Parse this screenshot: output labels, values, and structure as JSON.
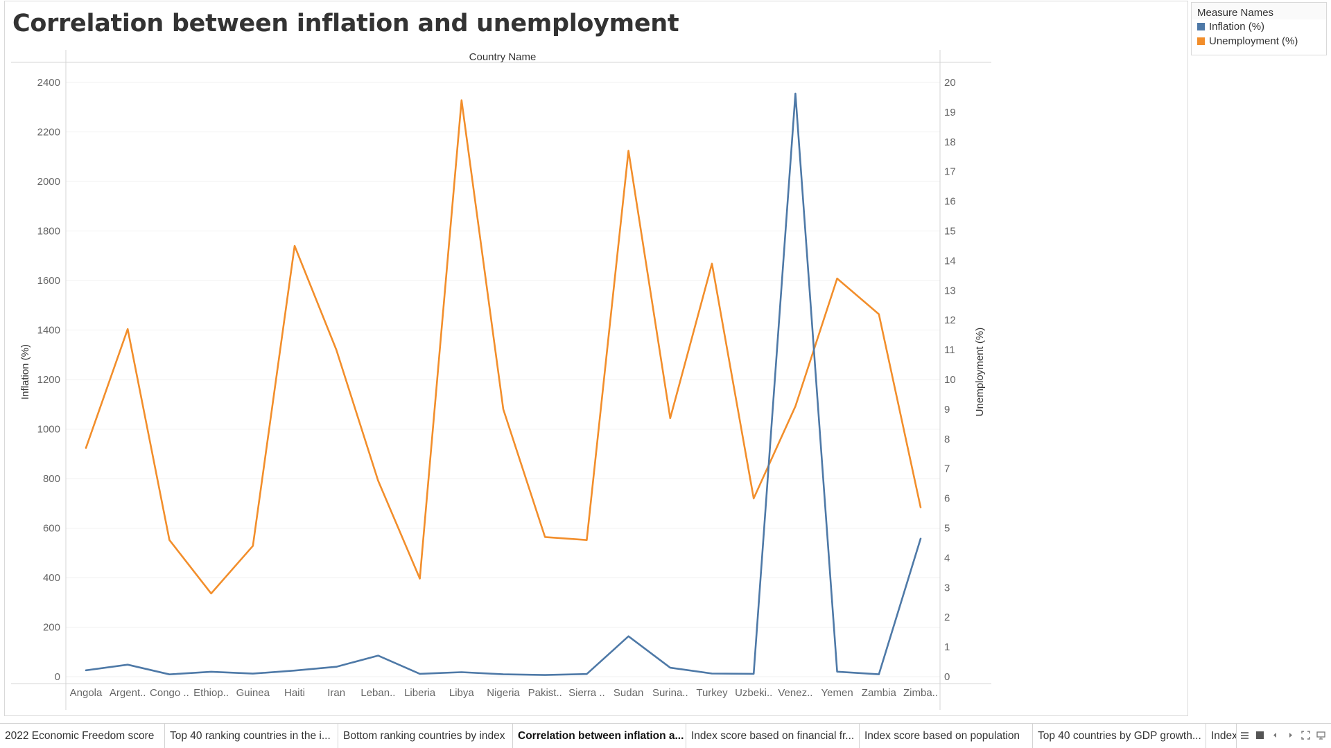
{
  "title": "Correlation between inflation and unemployment",
  "legend": {
    "title": "Measure Names",
    "items": [
      {
        "label": "Inflation (%)",
        "color": "#4e79a7"
      },
      {
        "label": "Unemployment (%)",
        "color": "#f28e2b"
      }
    ]
  },
  "tabs": [
    {
      "label": "2022 Economic Freedom score",
      "active": false
    },
    {
      "label": "Top 40 ranking countries in the i...",
      "active": false
    },
    {
      "label": "Bottom ranking countries by index",
      "active": false
    },
    {
      "label": "Correlation between inflation a...",
      "active": true
    },
    {
      "label": "Index score based on financial fr...",
      "active": false
    },
    {
      "label": "Index score based on population",
      "active": false
    },
    {
      "label": "Top 40 countries by GDP growth...",
      "active": false
    },
    {
      "label": "Index",
      "active": false
    }
  ],
  "tab_controls": [
    "sheet-list-icon",
    "filmstrip-icon",
    "previous-sheet-icon",
    "next-sheet-icon",
    "fullscreen-icon",
    "presentation-icon"
  ],
  "chart_data": {
    "type": "line",
    "title": "Correlation between inflation and unemployment",
    "xlabel": "Country Name",
    "categories": [
      "Angola",
      "Argent..",
      "Congo ..",
      "Ethiop..",
      "Guinea",
      "Haiti",
      "Iran",
      "Leban..",
      "Liberia",
      "Libya",
      "Nigeria",
      "Pakist..",
      "Sierra ..",
      "Sudan",
      "Surina..",
      "Turkey",
      "Uzbeki..",
      "Venez..",
      "Yemen",
      "Zambia",
      "Zimba.."
    ],
    "y_left": {
      "label": "Inflation (%)",
      "range": [
        0,
        2400
      ],
      "ticks": [
        0,
        200,
        400,
        600,
        800,
        1000,
        1200,
        1400,
        1600,
        1800,
        2000,
        2200,
        2400
      ]
    },
    "y_right": {
      "label": "Unemployment (%)",
      "range": [
        0,
        20
      ],
      "ticks": [
        0,
        1,
        2,
        3,
        4,
        5,
        6,
        7,
        8,
        9,
        10,
        11,
        12,
        13,
        14,
        15,
        16,
        17,
        18,
        19,
        20
      ]
    },
    "series": [
      {
        "name": "Inflation (%)",
        "axis": "left",
        "color": "#4e79a7",
        "values": [
          25.8,
          48.4,
          9.3,
          20.0,
          12.2,
          24.7,
          40.1,
          84.9,
          11.4,
          18.3,
          9.4,
          6.6,
          10.5,
          163.0,
          36.1,
          12.5,
          11.4,
          2355.1,
          20.2,
          9.4,
          557.2
        ]
      },
      {
        "name": "Unemployment (%)",
        "axis": "right",
        "color": "#f28e2b",
        "values": [
          7.7,
          11.7,
          4.6,
          2.8,
          4.4,
          14.5,
          11.0,
          6.6,
          3.3,
          19.4,
          9.0,
          4.7,
          4.6,
          17.7,
          8.7,
          13.9,
          6.0,
          9.1,
          13.4,
          12.2,
          5.7
        ]
      }
    ],
    "grid": true,
    "legend_position": "top-right"
  }
}
